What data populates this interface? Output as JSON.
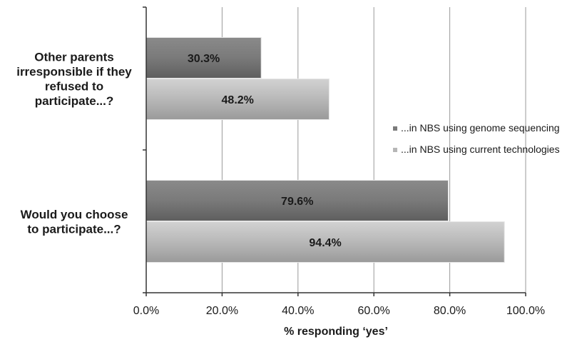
{
  "chart_data": {
    "type": "bar",
    "orientation": "horizontal",
    "categories": [
      [
        "Other parents",
        "irresponsible if they",
        "refused to",
        "participate...?"
      ],
      [
        "Would you choose",
        "to participate...?"
      ]
    ],
    "series": [
      {
        "name": "...in NBS using genome sequencing",
        "values": [
          30.3,
          79.6
        ],
        "labels": [
          "30.3%",
          "79.6%"
        ],
        "color": "#7b7b7b"
      },
      {
        "name": "...in NBS using current technologies",
        "values": [
          48.2,
          94.4
        ],
        "labels": [
          "48.2%",
          "94.4%"
        ],
        "color": "#b6b6b6"
      }
    ],
    "xlim": [
      0,
      100
    ],
    "xticks": [
      "0.0%",
      "20.0%",
      "40.0%",
      "60.0%",
      "80.0%",
      "100.0%"
    ],
    "xlabel": "% responding ‘yes’",
    "ylabel": "",
    "title": "",
    "grid": "vertical",
    "legend_position": "right"
  }
}
